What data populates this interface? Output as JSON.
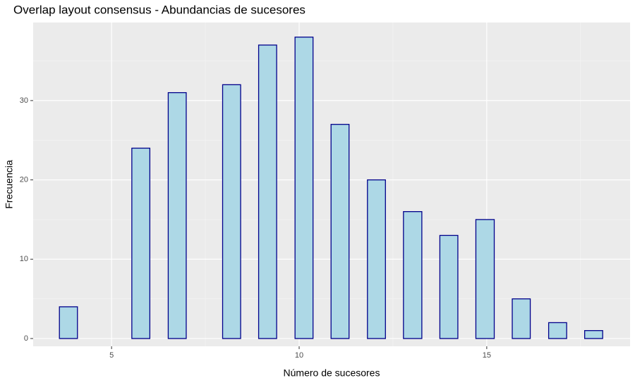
{
  "chart_data": {
    "type": "histogram",
    "title": "Overlap layout consensus - Abundancias de sucesores",
    "x_label": "Número de sucesores",
    "y_label": "Frecuencia",
    "bins": [
      3.61,
      4.09,
      4.58,
      5.06,
      5.54,
      6.02,
      6.51,
      6.99,
      7.47,
      7.96,
      8.44,
      8.92,
      9.4,
      9.89,
      10.37,
      10.85,
      11.33,
      11.82,
      12.3,
      12.78,
      13.27,
      13.75,
      14.23,
      14.71,
      15.2,
      15.68,
      16.16,
      16.65,
      17.13,
      17.61,
      18.09
    ],
    "values": [
      4,
      0,
      0,
      0,
      24,
      0,
      31,
      0,
      0,
      32,
      0,
      37,
      0,
      38,
      0,
      27,
      0,
      20,
      0,
      16,
      0,
      13,
      0,
      15,
      0,
      5,
      0,
      2,
      0,
      1
    ],
    "fill": "#add8e6",
    "edge_color": "#00008b",
    "xlim": [
      2.91,
      18.82
    ],
    "ylim": [
      -0.98,
      39.84
    ],
    "xticks": [
      5,
      10,
      15
    ],
    "yticks": [
      0,
      10,
      20,
      30
    ],
    "x_minor_ticks": [
      7.5,
      12.5,
      17.5
    ],
    "y_minor_ticks": [
      5,
      15,
      25,
      35
    ],
    "grid": true
  }
}
